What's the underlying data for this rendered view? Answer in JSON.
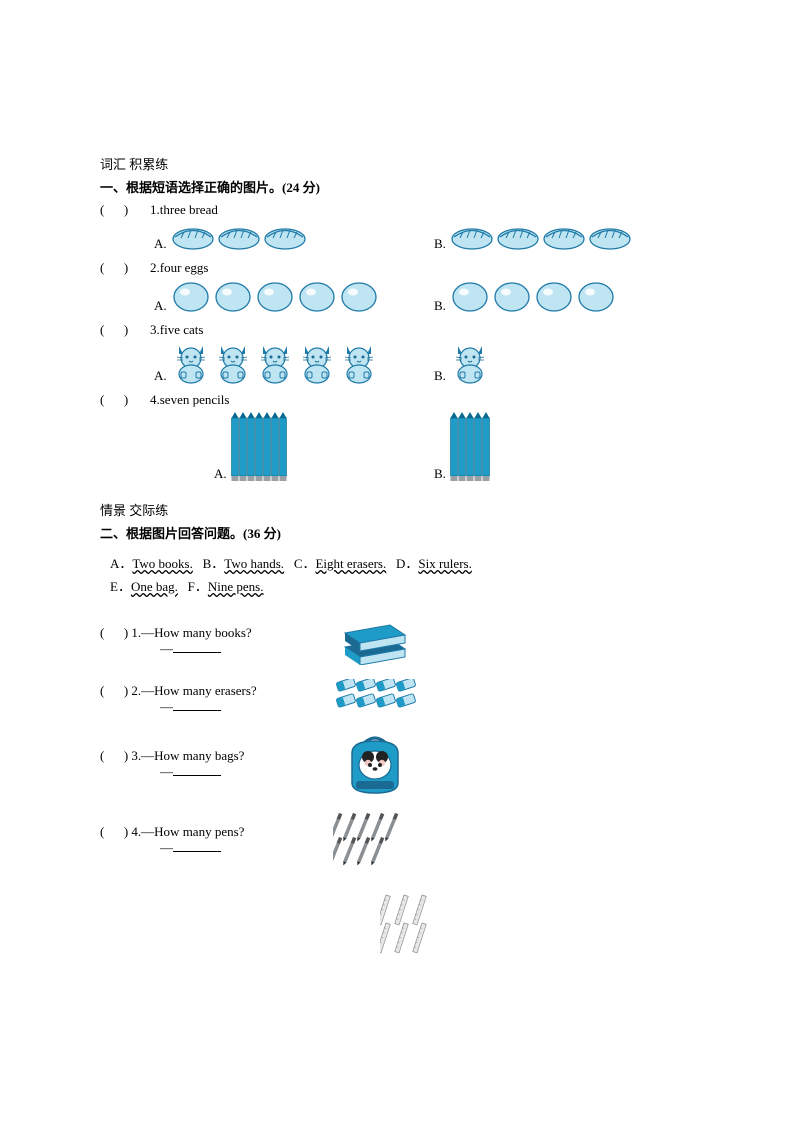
{
  "colors": {
    "fill": "#bfe4f2",
    "stroke": "#1e7aa8",
    "dark": "#1a6a93",
    "pencil": "#1e9bc6",
    "pencilDark": "#0a6a8f",
    "grey": "#8a8f94"
  },
  "section1": {
    "title": "词汇 积累练",
    "heading": "一、根据短语选择正确的图片。(24 分)",
    "questions": [
      {
        "num": "1",
        "text": "three bread",
        "type": "bread",
        "countA": 3,
        "countB": 4
      },
      {
        "num": "2",
        "text": "four eggs",
        "type": "egg",
        "countA": 5,
        "countB": 4
      },
      {
        "num": "3",
        "text": "five cats",
        "type": "cat",
        "countA": 5,
        "countB": 1
      },
      {
        "num": "4",
        "text": "seven pencils",
        "type": "pencil",
        "countA": 7,
        "countB": 5
      }
    ]
  },
  "section2": {
    "title": "情景 交际练",
    "heading": "二、根据图片回答问题。(36 分)",
    "bank": [
      {
        "letter": "A．",
        "text": "Two books."
      },
      {
        "letter": "B．",
        "text": "Two hands."
      },
      {
        "letter": "C．",
        "text": "Eight erasers."
      },
      {
        "letter": "D．",
        "text": "Six rulers."
      },
      {
        "letter": "E．",
        "text": "One bag."
      },
      {
        "letter": "F．",
        "text": "Nine pens."
      }
    ],
    "questions": [
      {
        "num": "1",
        "q": "—How many books?",
        "icon": "books"
      },
      {
        "num": "2",
        "q": "—How many erasers?",
        "icon": "erasers"
      },
      {
        "num": "3",
        "q": "—How many bags?",
        "icon": "bag"
      },
      {
        "num": "4",
        "q": "—How many pens?",
        "icon": "pens"
      }
    ],
    "extraIcon": "rulers"
  }
}
